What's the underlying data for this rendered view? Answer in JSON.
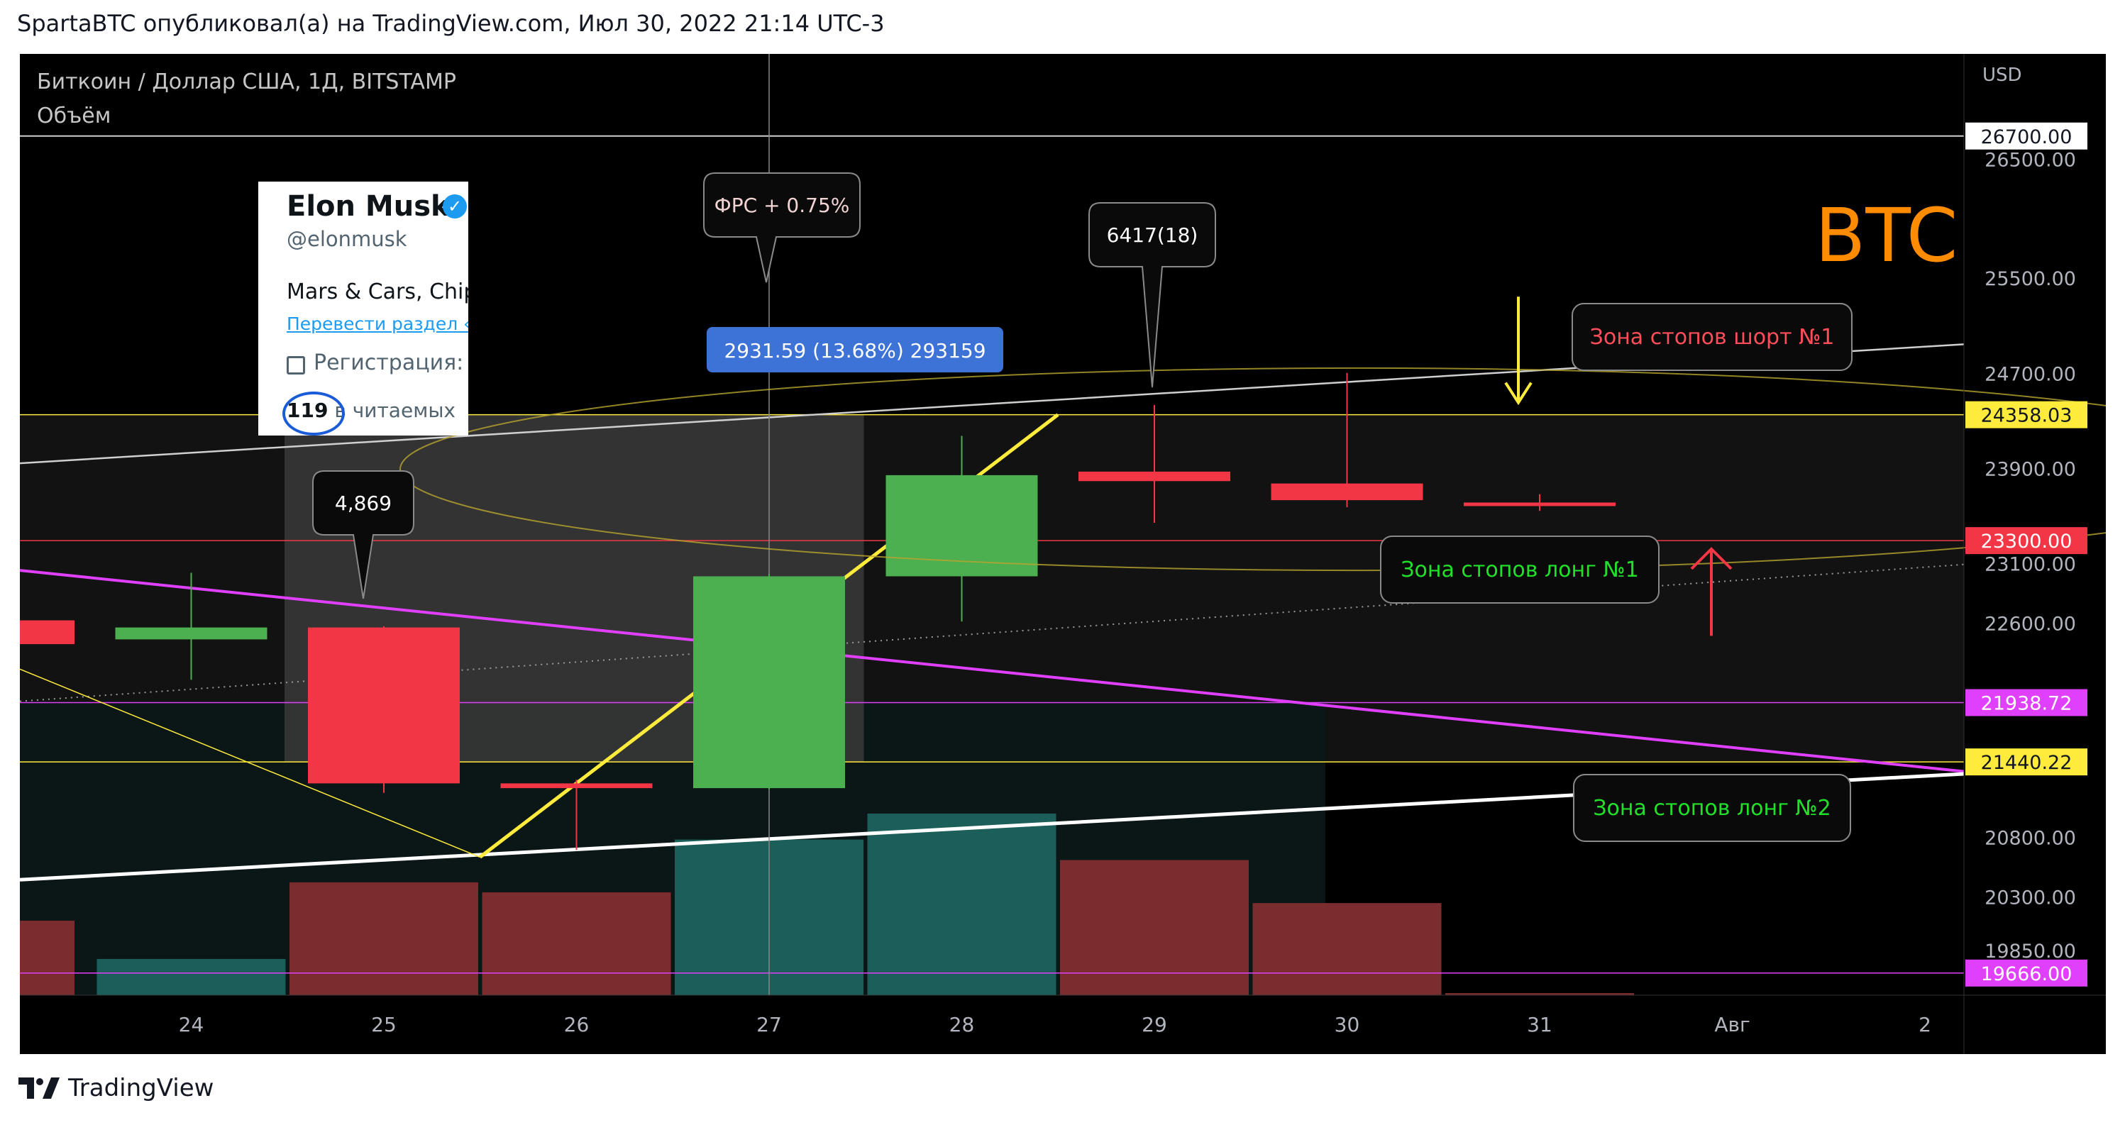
{
  "header": {
    "text": "SpartaBTC опубликовал(а) на TradingView.com, Июл 30, 2022 21:14 UTC-3"
  },
  "footer": {
    "brand": "TradingView"
  },
  "legend": {
    "symbol": "Биткоин / Доллар США, 1Д, BITSTAMP",
    "indicator": "Объём"
  },
  "colors": {
    "bull": "#4caf50",
    "bear": "#f23645",
    "vol_bull": "#1b5e5a",
    "vol_bear": "#7a2c2e",
    "yellow": "#ffeb3b",
    "magenta": "#e040fb",
    "red": "#f23645",
    "white": "#ffffff",
    "orange": "#ff8c00"
  },
  "tweet_overlay": {
    "name": "Elon Musk",
    "handle": "@elonmusk",
    "bio": "Mars & Cars, Chip",
    "translate": "Перевести раздел «О",
    "registration": "Регистрация: и",
    "following_count": "119",
    "following_label": " в читаемых"
  },
  "chart_data": {
    "type": "candlestick",
    "title": "BTC",
    "currency": "USD",
    "ylim": [
      19480,
      27390
    ],
    "x_ticks": [
      "24",
      "25",
      "26",
      "27",
      "28",
      "29",
      "30",
      "31",
      "Авг",
      "2"
    ],
    "y_ticks": [
      26500,
      25500,
      24700,
      23900,
      23100,
      22600,
      20800,
      20300,
      19850
    ],
    "candles": [
      {
        "x": "23",
        "open": 22630,
        "close": 22430,
        "high": 22720,
        "low": 22380
      },
      {
        "x": "24",
        "open": 22470,
        "close": 22570,
        "high": 23030,
        "low": 22130
      },
      {
        "x": "25",
        "open": 22570,
        "close": 21260,
        "high": 22580,
        "low": 21180
      },
      {
        "x": "26",
        "open": 21260,
        "close": 21220,
        "high": 21290,
        "low": 20700
      },
      {
        "x": "27",
        "open": 21220,
        "close": 23000,
        "high": 23020,
        "low": 21210
      },
      {
        "x": "28",
        "open": 23000,
        "close": 23850,
        "high": 24180,
        "low": 22620
      },
      {
        "x": "29",
        "open": 23880,
        "close": 23800,
        "high": 24440,
        "low": 23450
      },
      {
        "x": "30",
        "open": 23780,
        "close": 23640,
        "high": 24710,
        "low": 23580
      },
      {
        "x": "31",
        "open": 23620,
        "close": 23610,
        "high": 23690,
        "low": 23550
      }
    ],
    "volume_bars": [
      {
        "x": "23",
        "dir": "bear",
        "height_pct": 28.4
      },
      {
        "x": "24",
        "dir": "bull",
        "height_pct": 13.8
      },
      {
        "x": "25",
        "dir": "bear",
        "height_pct": 43.0
      },
      {
        "x": "26",
        "dir": "bear",
        "height_pct": 39.2
      },
      {
        "x": "27",
        "dir": "bull",
        "height_pct": 59.3
      },
      {
        "x": "28",
        "dir": "bull",
        "height_pct": 69.2
      },
      {
        "x": "29",
        "dir": "bear",
        "height_pct": 51.5
      },
      {
        "x": "30",
        "dir": "bear",
        "height_pct": 35.1
      },
      {
        "x": "31",
        "dir": "bear",
        "height_pct": 0.8
      }
    ],
    "price_labels": [
      {
        "value": "26700.00",
        "style": "white"
      },
      {
        "value": "24358.03",
        "style": "yellow"
      },
      {
        "value": "23300.00",
        "style": "red"
      },
      {
        "value": "21938.72",
        "style": "magenta"
      },
      {
        "value": "21440.22",
        "style": "yellow"
      },
      {
        "value": "19666.00",
        "style": "magenta"
      }
    ],
    "annotations": {
      "fed": "ФРС + 0.75%",
      "measure": "2931.59 (13.68%) 293159",
      "pump": "6417(18)",
      "drop": "4,869",
      "short_zone": "Зона стопов шорт №1",
      "long_zone_1": "Зона стопов лонг №1",
      "long_zone_2": "Зона стопов лонг №2"
    }
  }
}
